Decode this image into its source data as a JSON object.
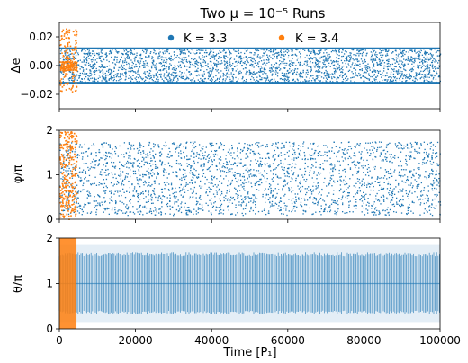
{
  "chart_data": {
    "type": "scatter",
    "title": "Two μ = 10⁻⁵ Runs",
    "xlabel": "Time [P₁]",
    "xlim": [
      0,
      100000
    ],
    "xticks": [
      0,
      20000,
      40000,
      60000,
      80000,
      100000
    ],
    "series": [
      {
        "name": "K = 3.3",
        "color": "#1f77b4"
      },
      {
        "name": "K = 3.4",
        "color": "#ff7f0e"
      }
    ],
    "legend_position": "top",
    "panels": [
      {
        "ylabel": "Δe",
        "ylim": [
          -0.03,
          0.03
        ],
        "yticks": [
          -0.02,
          0.0,
          0.02
        ],
        "ytick_labels": [
          "−0.02",
          "0.00",
          "0.02"
        ],
        "K33": {
          "time_range": [
            0,
            100000
          ],
          "band": [
            -0.012,
            0.012
          ],
          "edge_lines": [
            -0.012,
            0.012
          ]
        },
        "K34": {
          "time_range": [
            0,
            4500
          ],
          "band": [
            -0.018,
            0.027
          ]
        }
      },
      {
        "ylabel": "φ/π",
        "ylim": [
          0,
          2
        ],
        "yticks": [
          0,
          1,
          2
        ],
        "ytick_labels": [
          "0",
          "1",
          "2"
        ],
        "K33": {
          "time_range": [
            0,
            100000
          ],
          "band": [
            0.1,
            1.75
          ]
        },
        "K34": {
          "time_range": [
            0,
            4500
          ],
          "band": [
            0,
            2
          ]
        }
      },
      {
        "ylabel": "θ/π",
        "ylim": [
          0,
          2
        ],
        "yticks": [
          0,
          1,
          2
        ],
        "ytick_labels": [
          "0",
          "1",
          "2"
        ],
        "K33": {
          "time_range": [
            0,
            100000
          ],
          "band": [
            0.15,
            1.85
          ],
          "dense_band": [
            0.4,
            1.6
          ]
        },
        "K34": {
          "time_range": [
            0,
            4500
          ],
          "band": [
            0,
            2
          ]
        }
      }
    ]
  }
}
